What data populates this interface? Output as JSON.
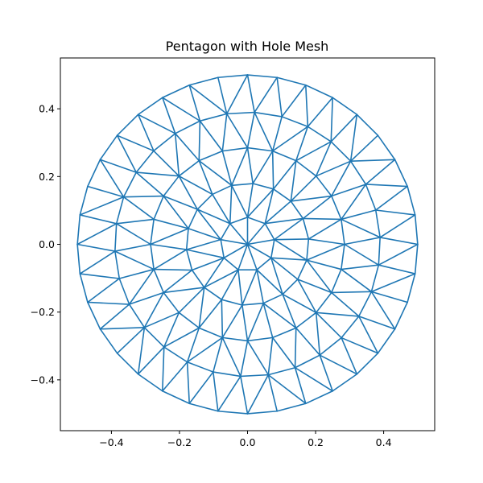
{
  "chart_data": {
    "type": "line",
    "title": "Pentagon with Hole Mesh",
    "xlabel": "",
    "ylabel": "",
    "xlim": [
      -0.55,
      0.55
    ],
    "ylim": [
      -0.55,
      0.55
    ],
    "xticks": [
      -0.4,
      -0.2,
      0.0,
      0.2,
      0.4
    ],
    "xtick_labels": [
      "−0.4",
      "−0.2",
      "0.0",
      "0.2",
      "0.4"
    ],
    "yticks": [
      -0.4,
      -0.2,
      0.0,
      0.2,
      0.4
    ],
    "ytick_labels": [
      "−0.4",
      "−0.2",
      "0.0",
      "0.2",
      "0.4"
    ],
    "grid": false,
    "line_color": "#1f77b4",
    "mesh": {
      "boundary_radius": 0.5,
      "boundary_points": 36,
      "interior_rings": [
        {
          "radius": 0.39,
          "points": 30,
          "phase_deg": 3
        },
        {
          "radius": 0.285,
          "points": 24,
          "phase_deg": 0
        },
        {
          "radius": 0.18,
          "points": 18,
          "phase_deg": 5
        },
        {
          "radius": 0.08,
          "points": 9,
          "phase_deg": 10
        }
      ],
      "center_point": [
        0.0,
        0.0
      ]
    }
  }
}
